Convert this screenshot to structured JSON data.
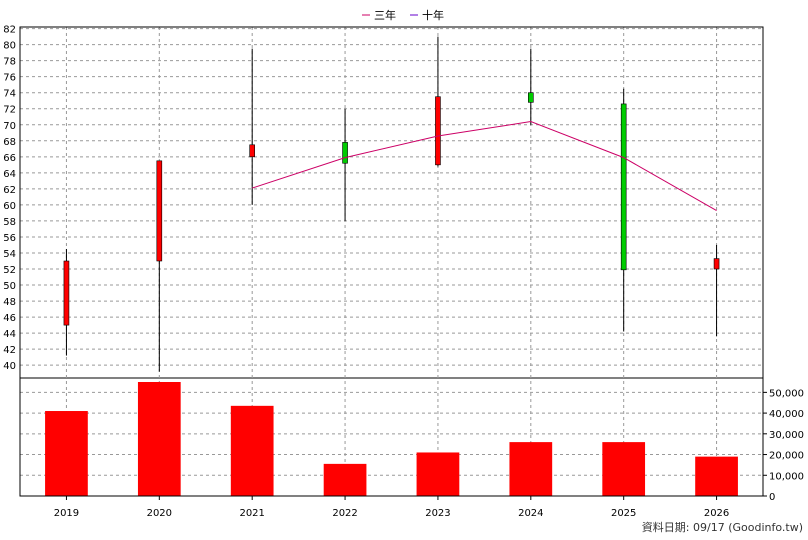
{
  "legend": {
    "items": [
      {
        "label": "三年",
        "color": "#cc0066"
      },
      {
        "label": "十年",
        "color": "#6600cc"
      }
    ]
  },
  "footer": {
    "text": "資料日期: 09/17  (Goodinfo.tw)"
  },
  "colors": {
    "up": "#ff0000",
    "down": "#00cc00",
    "volume": "#ff0000",
    "line3y": "#cc0066",
    "grid": "#999999"
  },
  "chart_data": [
    {
      "type": "candlestick",
      "categories": [
        "2019",
        "2020",
        "2021",
        "2022",
        "2023",
        "2024",
        "2025",
        "2026"
      ],
      "ylim": [
        38.4,
        82.2
      ],
      "yticks": [
        40,
        42,
        44,
        46,
        48,
        50,
        52,
        54,
        56,
        58,
        60,
        62,
        64,
        66,
        68,
        70,
        72,
        74,
        76,
        78,
        80,
        82
      ],
      "candles": [
        {
          "x": "2019",
          "open": 45,
          "close": 53,
          "high": 54.5,
          "low": 41.2,
          "dir": "up"
        },
        {
          "x": "2020",
          "open": 53,
          "close": 65.5,
          "high": 65.5,
          "low": 39.2,
          "dir": "up"
        },
        {
          "x": "2021",
          "open": 66,
          "close": 67.5,
          "high": 79.5,
          "low": 60,
          "dir": "up"
        },
        {
          "x": "2022",
          "open": 67.8,
          "close": 65.2,
          "high": 72,
          "low": 58,
          "dir": "down"
        },
        {
          "x": "2023",
          "open": 65,
          "close": 73.5,
          "high": 81,
          "low": 64.8,
          "dir": "up"
        },
        {
          "x": "2024",
          "open": 74,
          "close": 72.8,
          "high": 79.5,
          "low": 70,
          "dir": "down"
        },
        {
          "x": "2025",
          "open": 72.6,
          "close": 51.9,
          "high": 74.5,
          "low": 44.2,
          "dir": "down"
        },
        {
          "x": "2026",
          "open": 52,
          "close": 53.3,
          "high": 55,
          "low": 43.6,
          "dir": "up"
        }
      ],
      "series": [
        {
          "name": "三年",
          "x": [
            "2021",
            "2022",
            "2023",
            "2024",
            "2025",
            "2026"
          ],
          "values": [
            62.1,
            65.9,
            68.6,
            70.4,
            65.9,
            59.3
          ]
        }
      ]
    },
    {
      "type": "bar",
      "categories": [
        "2019",
        "2020",
        "2021",
        "2022",
        "2023",
        "2024",
        "2025",
        "2026"
      ],
      "values": [
        41000,
        55000,
        43500,
        15500,
        21000,
        26000,
        26000,
        19000
      ],
      "ylim": [
        0,
        55000
      ],
      "yticks": [
        "0",
        "10,000",
        "20,000",
        "30,000",
        "40,000",
        "50,000"
      ],
      "ytick_values": [
        0,
        10000,
        20000,
        30000,
        40000,
        50000
      ]
    }
  ]
}
